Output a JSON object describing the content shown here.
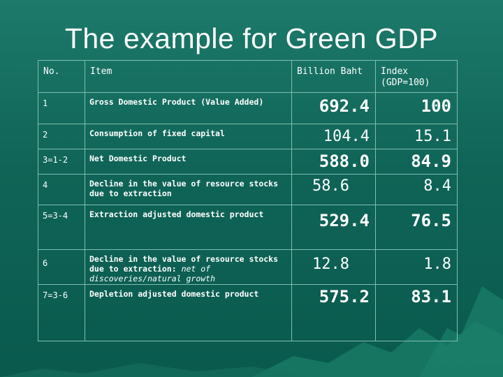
{
  "title": "The example for Green GDP",
  "headers": {
    "no": "No.",
    "item": "Item",
    "billion": "Billion Baht",
    "index_l1": "Index",
    "index_l2": "(GDP=100)"
  },
  "rows": [
    {
      "no": "1",
      "item": "Gross Domestic Product (Value Added)",
      "billion": "692.4",
      "index": "100"
    },
    {
      "no": "2",
      "item": "Consumption of fixed capital",
      "billion": "104.4",
      "index": "15.1"
    },
    {
      "no": "3=1-2",
      "item": "Net Domestic Product",
      "billion": "588.0",
      "index": "84.9"
    },
    {
      "no": "4",
      "item_l1": "Decline in the value of resource stocks",
      "item_l2": "due to extraction",
      "billion": "58.6",
      "index": "8.4"
    },
    {
      "no": "5=3-4",
      "item": "Extraction adjusted domestic product",
      "billion": "529.4",
      "index": "76.5"
    },
    {
      "no": "6",
      "item_l1": "Decline in the value of resource stocks",
      "item_l2": "due to extraction:",
      "item_l2_italic": "net of",
      "item_l3": "discoveries/natural growth",
      "billion": "12.8",
      "index": "1.8"
    },
    {
      "no": "7=3-6",
      "item": "Depletion adjusted domestic product",
      "billion": "575.2",
      "index": "83.1"
    }
  ],
  "colors": {
    "background": "#0f6457",
    "border": "#7fbfb0",
    "text": "#ffffff"
  }
}
